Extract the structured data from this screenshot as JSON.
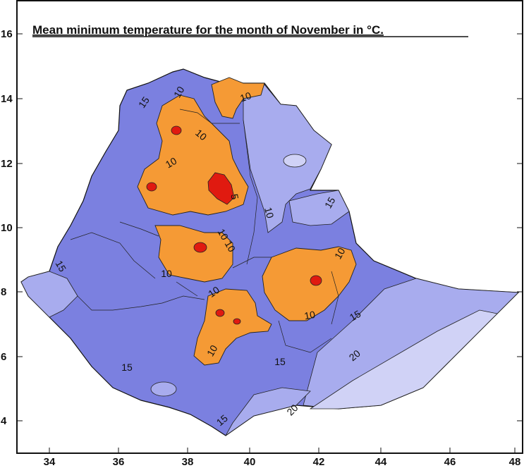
{
  "title": "Mean minimum temperature for the month of November in °C.",
  "axes": {
    "x_ticks": [
      "34",
      "36",
      "38",
      "40",
      "42",
      "44",
      "46",
      "48"
    ],
    "y_ticks": [
      "16",
      "14",
      "12",
      "10",
      "8",
      "6",
      "4"
    ]
  },
  "contour_labels": [
    "15",
    "10",
    "10",
    "10",
    "10",
    "5",
    "10",
    "15",
    "15",
    "10",
    "10",
    "10",
    "10",
    "10",
    "10",
    "15",
    "15",
    "15",
    "20",
    "15",
    "20",
    "10"
  ],
  "colors": {
    "outside": "#ffffff",
    "band_15_20": "#7b80e0",
    "band_lighter": "#a8acee",
    "band_20_plus": "#d0d2f6",
    "band_5_10": "#f59a35",
    "band_below_5": "#e01a10",
    "border": "#111111"
  }
}
